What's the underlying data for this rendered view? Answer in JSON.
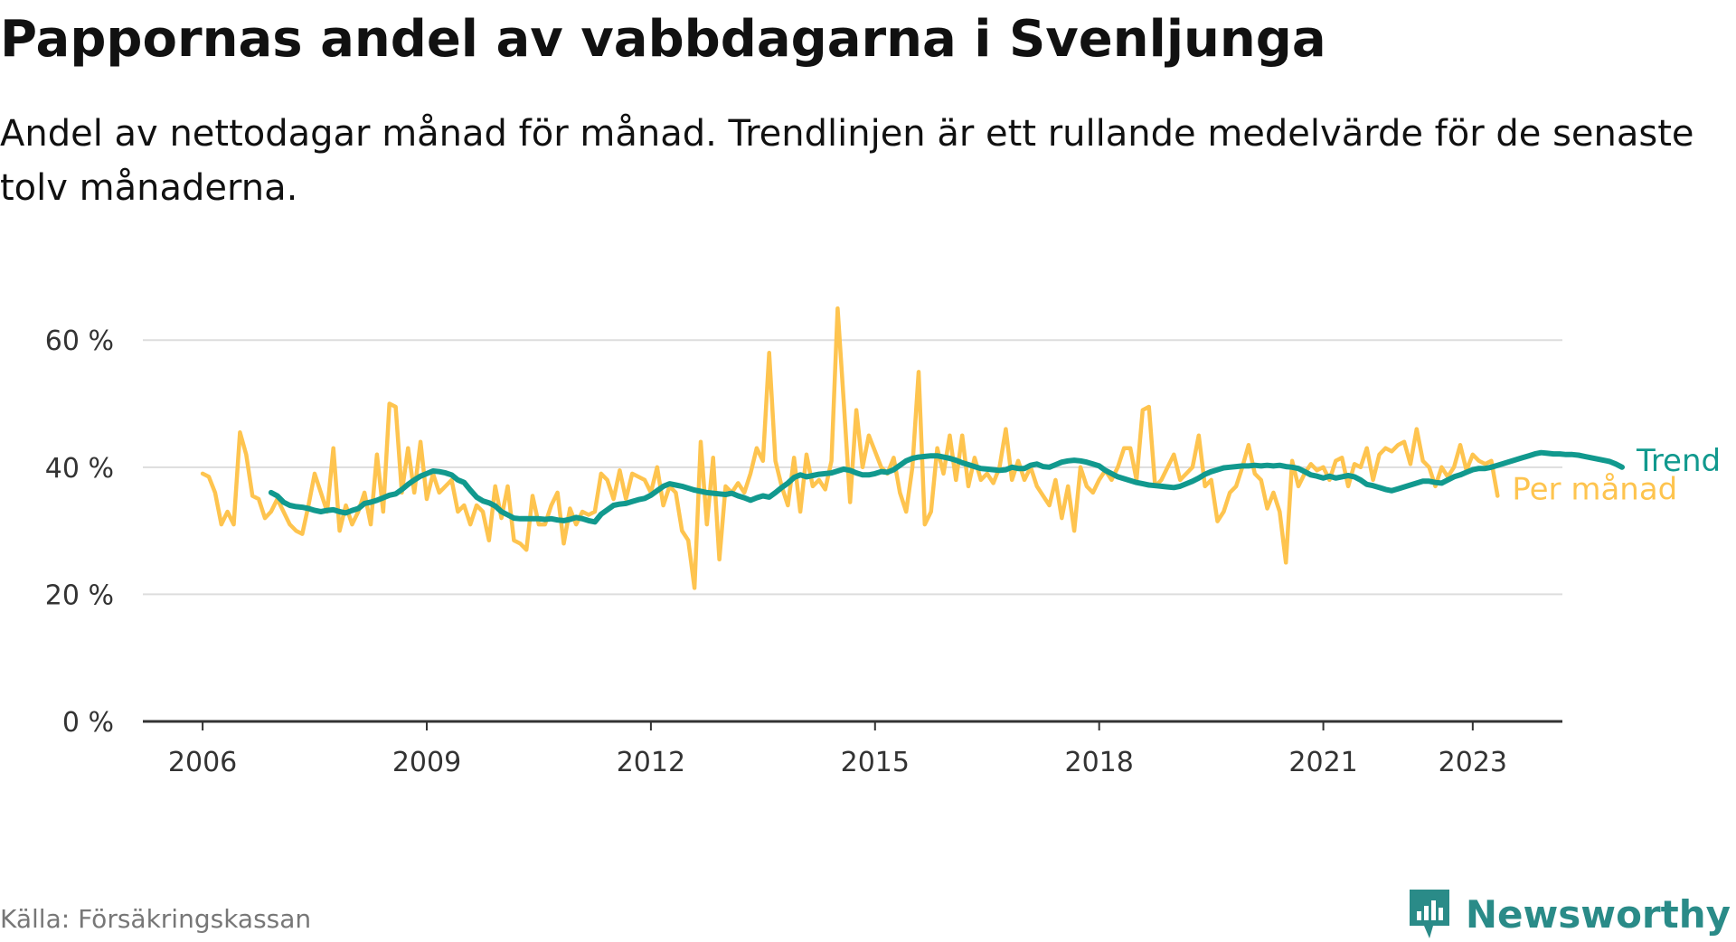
{
  "title": "Pappornas andel av vabbdagarna i Svenljunga",
  "subtitle": "Andel av nettodagar månad för månad. Trendlinjen är ett rullande medelvärde för de senaste tolv månaderna.",
  "source": "Källa: Försäkringskassan",
  "brand": {
    "name": "Newsworthy",
    "logo_icon": "newsworthy-logo-icon",
    "color": "#2a8b88"
  },
  "chart_data": {
    "type": "line",
    "title": "Pappornas andel av vabbdagarna i Svenljunga",
    "subtitle": "Andel av nettodagar månad för månad. Trendlinjen är ett rullande medelvärde för de senaste tolv månaderna.",
    "xlabel": "",
    "ylabel": "",
    "x_range": [
      2005.2,
      2024.2
    ],
    "ylim": [
      0,
      68
    ],
    "y_ticks": [
      0,
      20,
      40,
      60
    ],
    "y_tick_labels": [
      "0 %",
      "20 %",
      "40 %",
      "60 %"
    ],
    "x_ticks": [
      2006,
      2009,
      2012,
      2015,
      2018,
      2021,
      2023
    ],
    "x_tick_labels": [
      "2006",
      "2009",
      "2012",
      "2015",
      "2018",
      "2021",
      "2023"
    ],
    "grid": "horizontal",
    "legend": "direct labels at line ends (right)",
    "colors": {
      "grid": "#dddddd",
      "axis": "#333333"
    },
    "series": [
      {
        "name": "Per månad",
        "color": "#fec44f",
        "x_start": 2006,
        "step": 0.08333,
        "values": [
          39,
          38.5,
          36,
          31,
          33,
          31,
          45.5,
          42,
          35.5,
          35,
          32,
          33,
          35,
          33,
          31,
          30,
          29.5,
          34,
          39,
          36,
          33,
          43,
          30,
          34,
          31,
          33,
          36,
          31,
          42,
          33,
          50,
          49.5,
          36,
          43,
          36,
          44,
          35,
          39,
          36,
          37,
          38,
          33,
          34,
          31,
          34,
          33,
          28.5,
          37,
          32,
          37,
          28.5,
          28,
          27,
          35.5,
          31,
          31,
          34,
          36,
          28,
          33.5,
          31,
          33,
          32.5,
          33,
          39,
          38,
          35,
          39.5,
          35,
          39,
          38.5,
          38,
          36,
          40,
          34,
          37,
          36,
          30,
          28.5,
          21,
          44,
          31,
          41.5,
          25.5,
          37,
          36,
          37.5,
          36,
          39,
          43,
          41,
          58,
          41,
          37,
          34,
          41.5,
          33,
          42,
          37,
          38,
          36.5,
          41,
          65,
          50,
          34.5,
          49,
          40,
          45,
          42.5,
          40,
          39,
          41.5,
          36,
          33,
          40,
          55,
          31,
          33,
          43,
          39,
          45,
          38,
          45,
          37,
          41.5,
          38,
          39,
          37.5,
          40,
          46,
          38,
          41,
          38,
          40,
          37,
          35.5,
          34,
          38,
          32,
          37,
          30,
          40,
          37,
          36,
          38,
          39.5,
          38,
          40,
          43,
          43,
          38,
          49,
          49.5,
          37,
          38,
          40,
          42,
          38,
          39,
          40,
          45,
          37,
          38,
          31.5,
          33,
          36,
          37,
          40,
          43.5,
          39,
          38,
          33.5,
          36,
          33,
          25,
          41,
          37,
          39,
          40.5,
          39.5,
          40,
          38,
          41,
          41.5,
          37,
          40.5,
          40,
          43,
          38,
          42,
          43,
          42.5,
          43.5,
          44,
          40.5,
          46,
          41,
          40,
          37,
          40,
          38.5,
          40,
          43.5,
          39.5,
          42,
          41,
          40.5,
          41,
          35.5
        ]
      },
      {
        "name": "Trend",
        "color": "#11998e",
        "x_start": 2006.9167,
        "step": 0.08333,
        "values": [
          36,
          35.5,
          34.5,
          34,
          33.8,
          33.7,
          33.5,
          33.2,
          33,
          33.2,
          33.3,
          33,
          32.8,
          33.2,
          33.5,
          34.3,
          34.5,
          34.8,
          35.2,
          35.6,
          35.8,
          36.5,
          37.3,
          38,
          38.6,
          39,
          39.4,
          39.3,
          39.1,
          38.8,
          38,
          37.6,
          36.4,
          35.3,
          34.7,
          34.4,
          33.9,
          33,
          32.5,
          32,
          31.9,
          31.9,
          31.9,
          31.9,
          31.8,
          31.9,
          31.7,
          31.6,
          31.8,
          32.1,
          31.9,
          31.6,
          31.4,
          32.6,
          33.3,
          34,
          34.2,
          34.3,
          34.6,
          34.9,
          35.1,
          35.6,
          36.3,
          37,
          37.4,
          37.2,
          37,
          36.7,
          36.4,
          36.2,
          36,
          35.9,
          35.8,
          35.7,
          35.9,
          35.5,
          35.2,
          34.8,
          35.2,
          35.5,
          35.3,
          36,
          36.8,
          37.5,
          38.4,
          38.8,
          38.5,
          38.7,
          38.9,
          39,
          39.1,
          39.4,
          39.7,
          39.5,
          39.1,
          38.8,
          38.8,
          39,
          39.3,
          39.2,
          39.6,
          40.3,
          41,
          41.4,
          41.6,
          41.7,
          41.8,
          41.8,
          41.6,
          41.4,
          41.1,
          40.7,
          40.4,
          40.1,
          39.8,
          39.7,
          39.6,
          39.5,
          39.6,
          40,
          39.8,
          39.8,
          40.3,
          40.5,
          40.1,
          40,
          40.4,
          40.8,
          41,
          41.1,
          41,
          40.8,
          40.5,
          40.2,
          39.5,
          39,
          38.5,
          38.2,
          37.9,
          37.6,
          37.4,
          37.2,
          37.1,
          37,
          36.9,
          36.8,
          37,
          37.4,
          37.8,
          38.3,
          38.9,
          39.3,
          39.6,
          39.9,
          40,
          40.1,
          40.2,
          40.2,
          40.3,
          40.2,
          40.3,
          40.2,
          40.3,
          40.1,
          40,
          39.8,
          39.3,
          38.8,
          38.6,
          38.3,
          38.6,
          38.3,
          38.5,
          38.7,
          38.5,
          38,
          37.3,
          37.1,
          36.8,
          36.5,
          36.3,
          36.6,
          36.9,
          37.2,
          37.5,
          37.8,
          37.8,
          37.6,
          37.5,
          38,
          38.5,
          38.8,
          39.2,
          39.6,
          39.8,
          39.8,
          40,
          40.3,
          40.6,
          40.9,
          41.2,
          41.5,
          41.8,
          42.1,
          42.3,
          42.2,
          42.1,
          42.1,
          42,
          42,
          41.9,
          41.7,
          41.5,
          41.3,
          41.1,
          40.9,
          40.5,
          40
        ]
      }
    ]
  }
}
